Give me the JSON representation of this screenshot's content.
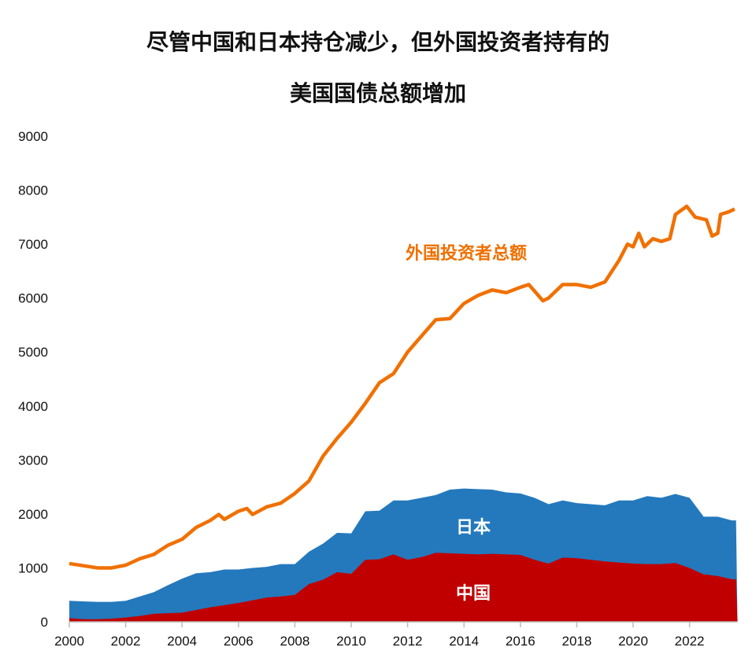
{
  "chart_data": {
    "type": "area",
    "title": [
      "尽管中国和日本持仓减少，但外国投资者持有的",
      "美国国债总额增加"
    ],
    "xlabel": "",
    "ylabel": "",
    "xlim": [
      2000,
      2023.7
    ],
    "ylim": [
      0,
      9000
    ],
    "x_ticks": [
      "2000",
      "2002",
      "2004",
      "2006",
      "2008",
      "2010",
      "2012",
      "2014",
      "2016",
      "2018",
      "2020",
      "2022"
    ],
    "y_ticks": [
      "0",
      "1000",
      "2000",
      "3000",
      "4000",
      "5000",
      "6000",
      "7000",
      "8000",
      "9000"
    ],
    "grid": false,
    "stacked_x": [
      2000,
      2000.5,
      2001,
      2001.5,
      2002,
      2002.5,
      2003,
      2003.5,
      2004,
      2004.5,
      2005,
      2005.5,
      2006,
      2006.5,
      2007,
      2007.5,
      2008,
      2008.5,
      2009,
      2009.5,
      2010,
      2010.5,
      2011,
      2011.5,
      2012,
      2012.5,
      2013,
      2013.5,
      2014,
      2014.5,
      2015,
      2015.5,
      2016,
      2016.5,
      2017,
      2017.5,
      2018,
      2018.5,
      2019,
      2019.5,
      2020,
      2020.5,
      2021,
      2021.5,
      2022,
      2022.5,
      2023,
      2023.5
    ],
    "series": [
      {
        "name": "中国",
        "kind": "stacked-area",
        "color": "#c00000",
        "values": [
          70,
          50,
          50,
          60,
          80,
          110,
          150,
          160,
          170,
          220,
          270,
          310,
          350,
          400,
          450,
          470,
          500,
          700,
          780,
          920,
          890,
          1150,
          1160,
          1250,
          1150,
          1200,
          1280,
          1270,
          1260,
          1250,
          1260,
          1250,
          1240,
          1150,
          1080,
          1190,
          1180,
          1150,
          1120,
          1100,
          1080,
          1070,
          1070,
          1090,
          1000,
          880,
          850,
          790
        ]
      },
      {
        "name": "日本",
        "kind": "stacked-area",
        "color": "#2479bd",
        "values": [
          320,
          330,
          320,
          310,
          310,
          360,
          400,
          520,
          630,
          680,
          650,
          660,
          620,
          600,
          570,
          600,
          570,
          600,
          670,
          730,
          750,
          900,
          900,
          1000,
          1100,
          1100,
          1070,
          1180,
          1210,
          1210,
          1190,
          1150,
          1140,
          1150,
          1100,
          1060,
          1020,
          1030,
          1040,
          1150,
          1170,
          1260,
          1230,
          1280,
          1300,
          1070,
          1100,
          1090
        ]
      },
      {
        "name": "外国投资者总额",
        "kind": "line",
        "color": "#f07000",
        "x": [
          2000,
          2000.5,
          2001,
          2001.5,
          2002,
          2002.5,
          2003,
          2003.5,
          2004,
          2004.5,
          2005,
          2005.3,
          2005.5,
          2006,
          2006.3,
          2006.5,
          2007,
          2007.5,
          2008,
          2008.5,
          2009,
          2009.5,
          2010,
          2010.5,
          2011,
          2011.5,
          2012,
          2012.5,
          2013,
          2013.5,
          2014,
          2014.5,
          2015,
          2015.5,
          2016,
          2016.3,
          2016.8,
          2017,
          2017.5,
          2018,
          2018.5,
          2019,
          2019.5,
          2019.8,
          2020,
          2020.2,
          2020.4,
          2020.7,
          2021,
          2021.3,
          2021.5,
          2021.9,
          2022.2,
          2022.6,
          2022.8,
          2023,
          2023.1,
          2023.4,
          2023.6
        ],
        "values": [
          1080,
          1040,
          1000,
          1000,
          1050,
          1170,
          1250,
          1420,
          1530,
          1750,
          1880,
          1990,
          1900,
          2050,
          2100,
          1990,
          2130,
          2200,
          2380,
          2610,
          3070,
          3400,
          3700,
          4050,
          4430,
          4600,
          5000,
          5300,
          5600,
          5620,
          5900,
          6050,
          6150,
          6100,
          6200,
          6250,
          5950,
          6000,
          6250,
          6250,
          6200,
          6300,
          6700,
          7000,
          6950,
          7200,
          6950,
          7100,
          7050,
          7100,
          7550,
          7700,
          7500,
          7450,
          7150,
          7200,
          7550,
          7600,
          7650
        ]
      }
    ]
  }
}
